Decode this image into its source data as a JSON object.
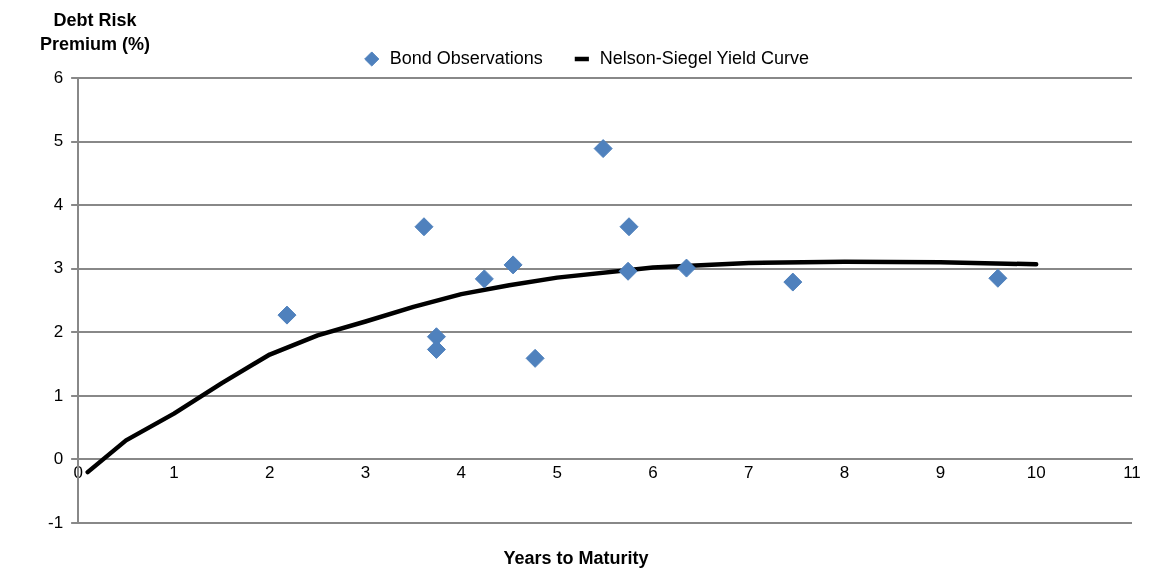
{
  "chart_data": {
    "type": "scatter",
    "xlabel": "Years to Maturity",
    "ylabel": "Debt Risk Premium (%)",
    "xlim": [
      0,
      11
    ],
    "xticks": [
      0,
      1,
      2,
      3,
      4,
      5,
      6,
      7,
      8,
      9,
      10,
      11
    ],
    "ylim": [
      -1,
      6
    ],
    "yticks": [
      -1,
      0,
      1,
      2,
      3,
      4,
      5,
      6
    ],
    "grid": "y",
    "legend": "top",
    "marker": "diamond",
    "series": [
      {
        "name": "Bond Observations",
        "color": "#4f81bd",
        "x": [
          2.18,
          3.61,
          3.74,
          3.74,
          4.24,
          4.54,
          4.77,
          5.48,
          5.75,
          5.74,
          6.35,
          7.46,
          9.6
        ],
        "values": [
          2.27,
          3.66,
          1.93,
          1.73,
          2.84,
          3.06,
          1.59,
          4.89,
          3.66,
          2.96,
          3.01,
          2.79,
          2.85
        ]
      },
      {
        "name": "Nelson-Siegel Yield Curve",
        "type": "line",
        "color": "#000000",
        "marker": "none",
        "x": [
          0.1,
          0.5,
          1,
          1.5,
          2,
          2.5,
          3,
          3.5,
          4,
          4.5,
          5,
          6,
          7,
          8,
          9,
          10
        ],
        "values": [
          -0.2,
          0.3,
          0.72,
          1.2,
          1.65,
          1.95,
          2.17,
          2.4,
          2.6,
          2.74,
          2.86,
          3.02,
          3.09,
          3.11,
          3.1,
          3.07
        ]
      }
    ]
  }
}
